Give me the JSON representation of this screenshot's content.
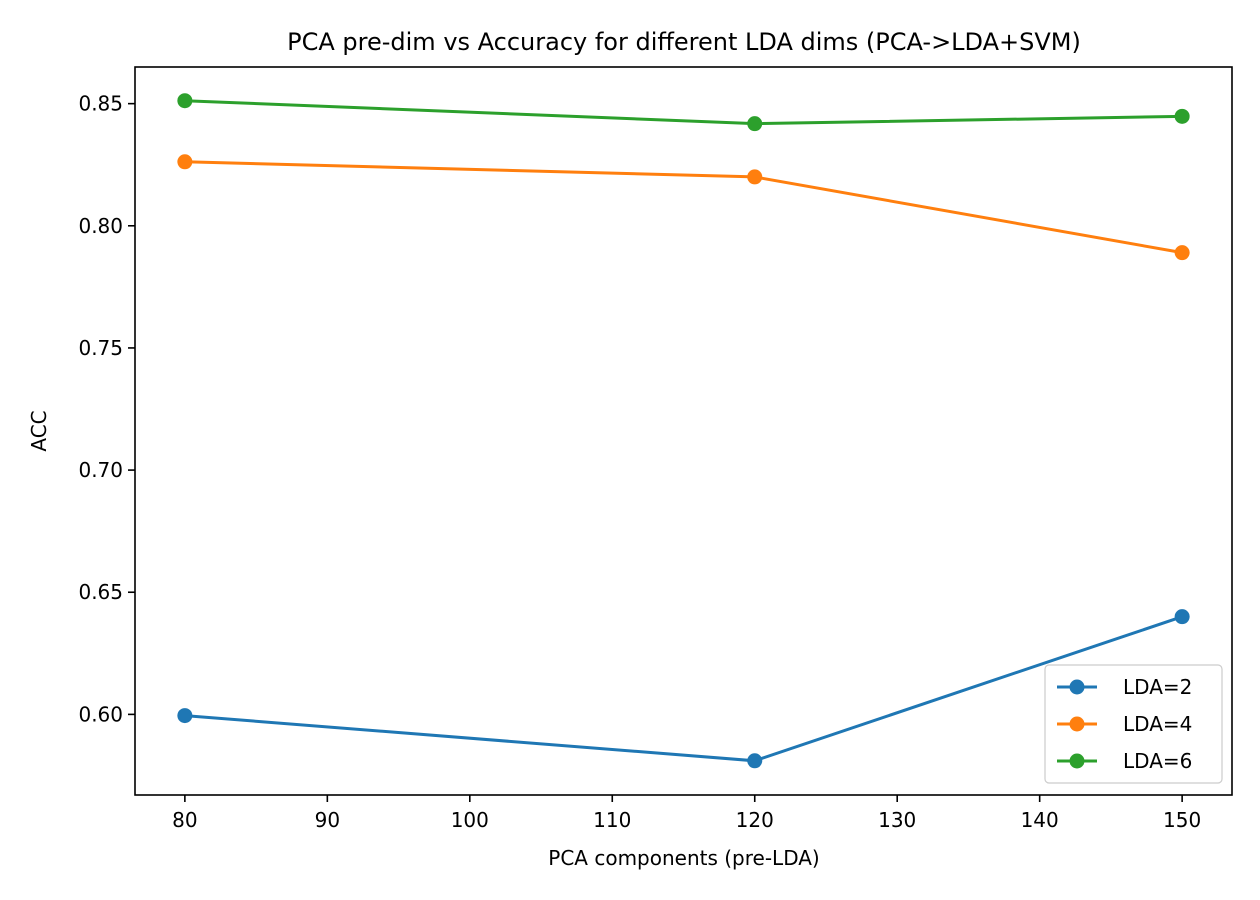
{
  "chart_data": {
    "type": "line",
    "title": "PCA pre-dim vs Accuracy for different LDA dims (PCA->LDA+SVM)",
    "xlabel": "PCA components (pre-LDA)",
    "ylabel": "ACC",
    "x": [
      80,
      120,
      150
    ],
    "xlim": [
      76.5,
      153.5
    ],
    "ylim": [
      0.567,
      0.865
    ],
    "xticks": [
      80,
      90,
      100,
      110,
      120,
      130,
      140,
      150
    ],
    "yticks": [
      0.6,
      0.65,
      0.7,
      0.75,
      0.8,
      0.85
    ],
    "xtick_labels": [
      "80",
      "90",
      "100",
      "110",
      "120",
      "130",
      "140",
      "150"
    ],
    "ytick_labels": [
      "0.60",
      "0.65",
      "0.70",
      "0.75",
      "0.80",
      "0.85"
    ],
    "grid": false,
    "legend_position": "lower-right",
    "series": [
      {
        "name": "LDA=2",
        "color": "#1f77b4",
        "values": [
          0.5995,
          0.581,
          0.64
        ]
      },
      {
        "name": "LDA=4",
        "color": "#ff7f0e",
        "values": [
          0.8262,
          0.82,
          0.789
        ]
      },
      {
        "name": "LDA=6",
        "color": "#2ca02c",
        "values": [
          0.8512,
          0.8418,
          0.8448
        ]
      }
    ]
  }
}
